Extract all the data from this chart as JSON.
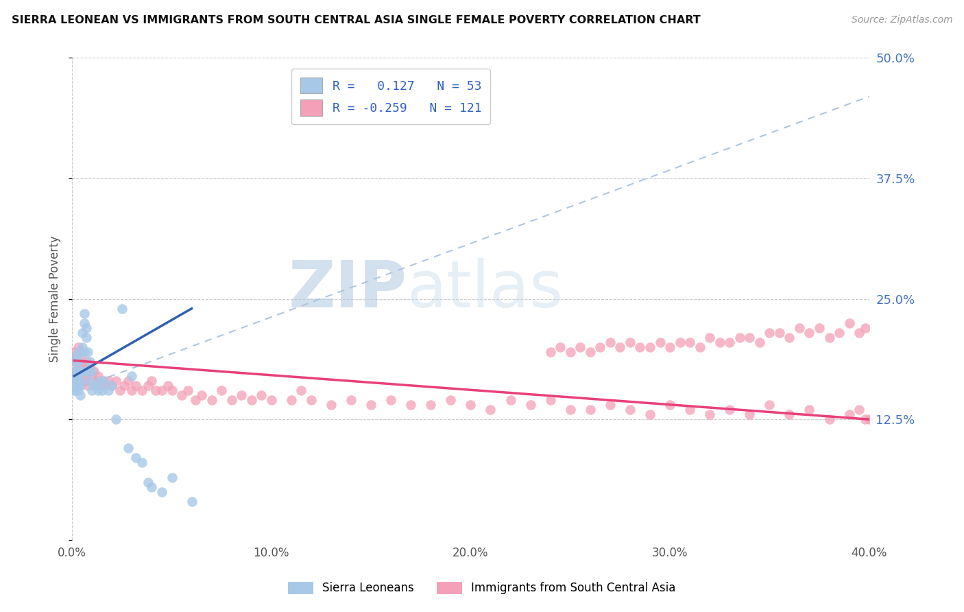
{
  "title": "SIERRA LEONEAN VS IMMIGRANTS FROM SOUTH CENTRAL ASIA SINGLE FEMALE POVERTY CORRELATION CHART",
  "source": "Source: ZipAtlas.com",
  "ylabel": "Single Female Poverty",
  "watermark": "ZIPatlas",
  "blue_color": "#a8c8e8",
  "pink_color": "#f4a0b8",
  "blue_line_color": "#3060b0",
  "pink_line_color": "#e8407a",
  "dashed_line_color": "#aec6e0",
  "legend_text_color": "#3060c8",
  "blue_scatter": {
    "x": [
      0.001,
      0.001,
      0.001,
      0.001,
      0.002,
      0.002,
      0.002,
      0.002,
      0.002,
      0.003,
      0.003,
      0.003,
      0.003,
      0.003,
      0.004,
      0.004,
      0.004,
      0.004,
      0.005,
      0.005,
      0.005,
      0.005,
      0.006,
      0.006,
      0.006,
      0.007,
      0.007,
      0.007,
      0.008,
      0.008,
      0.009,
      0.009,
      0.01,
      0.01,
      0.011,
      0.012,
      0.013,
      0.014,
      0.015,
      0.016,
      0.018,
      0.02,
      0.022,
      0.025,
      0.028,
      0.03,
      0.032,
      0.035,
      0.038,
      0.04,
      0.045,
      0.05,
      0.06
    ],
    "y": [
      0.155,
      0.165,
      0.175,
      0.155,
      0.175,
      0.185,
      0.165,
      0.19,
      0.17,
      0.185,
      0.195,
      0.16,
      0.17,
      0.155,
      0.165,
      0.175,
      0.16,
      0.15,
      0.195,
      0.2,
      0.215,
      0.175,
      0.225,
      0.235,
      0.195,
      0.21,
      0.22,
      0.175,
      0.195,
      0.175,
      0.165,
      0.185,
      0.155,
      0.175,
      0.16,
      0.16,
      0.155,
      0.165,
      0.155,
      0.165,
      0.155,
      0.16,
      0.125,
      0.24,
      0.095,
      0.17,
      0.085,
      0.08,
      0.06,
      0.055,
      0.05,
      0.065,
      0.04
    ]
  },
  "pink_scatter": {
    "x": [
      0.001,
      0.001,
      0.002,
      0.002,
      0.003,
      0.003,
      0.003,
      0.004,
      0.004,
      0.005,
      0.005,
      0.006,
      0.006,
      0.007,
      0.007,
      0.008,
      0.008,
      0.009,
      0.009,
      0.01,
      0.011,
      0.012,
      0.013,
      0.014,
      0.015,
      0.016,
      0.018,
      0.02,
      0.022,
      0.024,
      0.026,
      0.028,
      0.03,
      0.032,
      0.035,
      0.038,
      0.04,
      0.042,
      0.045,
      0.048,
      0.05,
      0.055,
      0.058,
      0.062,
      0.065,
      0.07,
      0.075,
      0.08,
      0.085,
      0.09,
      0.095,
      0.1,
      0.11,
      0.115,
      0.12,
      0.13,
      0.14,
      0.15,
      0.16,
      0.17,
      0.18,
      0.19,
      0.2,
      0.21,
      0.22,
      0.23,
      0.24,
      0.25,
      0.26,
      0.27,
      0.28,
      0.29,
      0.3,
      0.31,
      0.32,
      0.33,
      0.34,
      0.35,
      0.36,
      0.37,
      0.38,
      0.39,
      0.395,
      0.398,
      0.4,
      0.398,
      0.395,
      0.39,
      0.385,
      0.38,
      0.375,
      0.37,
      0.365,
      0.36,
      0.355,
      0.35,
      0.345,
      0.34,
      0.335,
      0.33,
      0.325,
      0.32,
      0.315,
      0.31,
      0.305,
      0.3,
      0.295,
      0.29,
      0.285,
      0.28,
      0.275,
      0.27,
      0.265,
      0.26,
      0.255,
      0.25,
      0.245,
      0.24
    ],
    "y": [
      0.195,
      0.185,
      0.175,
      0.19,
      0.2,
      0.185,
      0.165,
      0.18,
      0.195,
      0.185,
      0.175,
      0.18,
      0.165,
      0.185,
      0.17,
      0.175,
      0.16,
      0.175,
      0.18,
      0.17,
      0.175,
      0.165,
      0.17,
      0.16,
      0.165,
      0.16,
      0.165,
      0.16,
      0.165,
      0.155,
      0.16,
      0.165,
      0.155,
      0.16,
      0.155,
      0.16,
      0.165,
      0.155,
      0.155,
      0.16,
      0.155,
      0.15,
      0.155,
      0.145,
      0.15,
      0.145,
      0.155,
      0.145,
      0.15,
      0.145,
      0.15,
      0.145,
      0.145,
      0.155,
      0.145,
      0.14,
      0.145,
      0.14,
      0.145,
      0.14,
      0.14,
      0.145,
      0.14,
      0.135,
      0.145,
      0.14,
      0.145,
      0.135,
      0.135,
      0.14,
      0.135,
      0.13,
      0.14,
      0.135,
      0.13,
      0.135,
      0.13,
      0.14,
      0.13,
      0.135,
      0.125,
      0.13,
      0.135,
      0.125,
      0.125,
      0.22,
      0.215,
      0.225,
      0.215,
      0.21,
      0.22,
      0.215,
      0.22,
      0.21,
      0.215,
      0.215,
      0.205,
      0.21,
      0.21,
      0.205,
      0.205,
      0.21,
      0.2,
      0.205,
      0.205,
      0.2,
      0.205,
      0.2,
      0.2,
      0.205,
      0.2,
      0.205,
      0.2,
      0.195,
      0.2,
      0.195,
      0.2,
      0.195
    ]
  },
  "xlim": [
    0.0,
    0.4
  ],
  "ylim": [
    0.0,
    0.5
  ],
  "xticks": [
    0.0,
    0.1,
    0.2,
    0.3,
    0.4
  ],
  "xtick_labels": [
    "0.0%",
    "10.0%",
    "20.0%",
    "30.0%",
    "40.0%"
  ],
  "ytick_vals": [
    0.0,
    0.125,
    0.25,
    0.375,
    0.5
  ],
  "ytick_labels": [
    "",
    "12.5%",
    "25.0%",
    "37.5%",
    "50.0%"
  ],
  "blue_line_x": [
    0.001,
    0.06
  ],
  "blue_line_y": [
    0.17,
    0.24
  ],
  "pink_line_x": [
    0.001,
    0.4
  ],
  "pink_line_y": [
    0.186,
    0.125
  ],
  "dash_line_x": [
    0.0,
    0.4
  ],
  "dash_line_y": [
    0.155,
    0.46
  ]
}
